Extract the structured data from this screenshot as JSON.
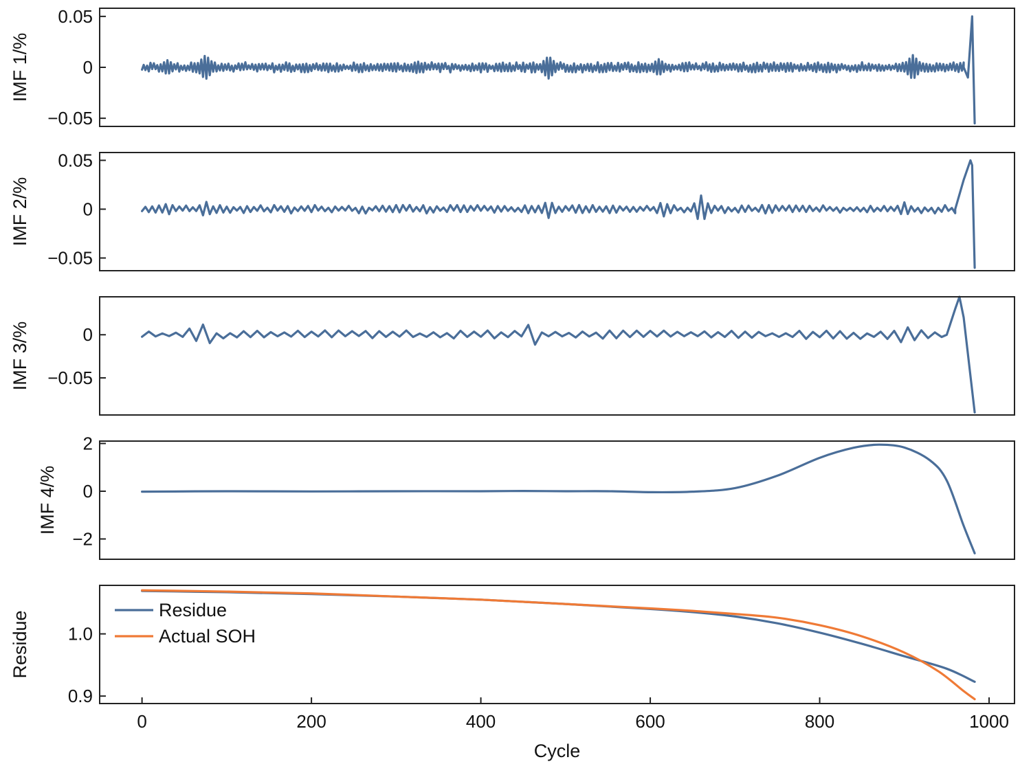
{
  "colors": {
    "blue": "#4a6e99",
    "orange": "#ef7a36",
    "axis": "#222222"
  },
  "chart_data": [
    {
      "type": "line",
      "ylabel": "IMF 1/%",
      "ylim": [
        -0.058,
        0.058
      ],
      "yticks": [
        0.05,
        0,
        -0.05
      ],
      "ytick_labels": [
        "0.05",
        "0",
        "−0.05"
      ],
      "xlim": [
        -50,
        1030
      ],
      "series": [
        {
          "color": "#4a6e99",
          "kind": "noise",
          "noise": {
            "step": 2,
            "base": 0.004,
            "seed": 11,
            "start": 0,
            "end": 970
          },
          "bursts": [
            [
              30,
              0.007
            ],
            [
              75,
              0.012
            ],
            [
              325,
              0.006
            ],
            [
              480,
              0.011
            ],
            [
              610,
              0.008
            ],
            [
              910,
              0.012
            ]
          ],
          "tail": [
            [
              970,
              0.0
            ],
            [
              975,
              -0.01
            ],
            [
              980,
              0.05
            ],
            [
              983,
              -0.055
            ]
          ]
        }
      ]
    },
    {
      "type": "line",
      "ylabel": "IMF 2/%",
      "ylim": [
        -0.063,
        0.058
      ],
      "yticks": [
        0.05,
        0,
        -0.05
      ],
      "ytick_labels": [
        "0.05",
        "0",
        "−0.05"
      ],
      "xlim": [
        -50,
        1030
      ],
      "series": [
        {
          "color": "#4a6e99",
          "kind": "noise",
          "noise": {
            "step": 4,
            "base": 0.0035,
            "seed": 23,
            "start": 0,
            "end": 960
          },
          "bursts": [
            [
              30,
              0.006
            ],
            [
              75,
              0.008
            ],
            [
              480,
              0.009
            ],
            [
              615,
              0.008
            ],
            [
              660,
              0.014
            ],
            [
              900,
              0.007
            ]
          ],
          "tail": [
            [
              960,
              0.0
            ],
            [
              970,
              0.03
            ],
            [
              978,
              0.05
            ],
            [
              980,
              0.045
            ],
            [
              983,
              -0.06
            ]
          ]
        }
      ]
    },
    {
      "type": "line",
      "ylabel": "IMF 3/%",
      "ylim": [
        -0.093,
        0.044
      ],
      "yticks": [
        0,
        -0.05
      ],
      "ytick_labels": [
        "0",
        "−0.05"
      ],
      "xlim": [
        -50,
        1030
      ],
      "series": [
        {
          "color": "#4a6e99",
          "kind": "noise",
          "noise": {
            "step": 8,
            "base": 0.004,
            "seed": 37,
            "start": 0,
            "end": 950
          },
          "bursts": [
            [
              60,
              0.01
            ],
            [
              75,
              0.015
            ],
            [
              460,
              0.016
            ],
            [
              900,
              0.012
            ],
            [
              915,
              0.008
            ]
          ],
          "tail": [
            [
              950,
              0.0
            ],
            [
              960,
              0.03
            ],
            [
              965,
              0.044
            ],
            [
              970,
              0.02
            ],
            [
              983,
              -0.09
            ]
          ]
        }
      ]
    },
    {
      "type": "line",
      "ylabel": "IMF 4/%",
      "ylim": [
        -2.85,
        2.1
      ],
      "yticks": [
        2,
        0,
        -2
      ],
      "ytick_labels": [
        "2",
        "0",
        "−2"
      ],
      "xlim": [
        -50,
        1030
      ],
      "series": [
        {
          "color": "#4a6e99",
          "kind": "points",
          "x": [
            0,
            100,
            200,
            300,
            400,
            450,
            500,
            550,
            600,
            650,
            700,
            750,
            800,
            840,
            870,
            900,
            930,
            950,
            970,
            983
          ],
          "y": [
            -0.02,
            0.0,
            -0.01,
            0.0,
            0.0,
            0.01,
            0.0,
            0.0,
            -0.04,
            -0.02,
            0.13,
            0.65,
            1.4,
            1.82,
            1.95,
            1.83,
            1.3,
            0.45,
            -1.45,
            -2.6
          ]
        }
      ]
    },
    {
      "type": "line",
      "ylabel": "Residue",
      "ylim": [
        0.888,
        1.078
      ],
      "yticks": [
        1.0,
        0.9
      ],
      "ytick_labels": [
        "1.0",
        "0.9"
      ],
      "xlim": [
        -50,
        1030
      ],
      "xticks": [
        0,
        200,
        400,
        600,
        800,
        1000
      ],
      "xtick_labels": [
        "0",
        "200",
        "400",
        "600",
        "800",
        "1000"
      ],
      "xlabel": "Cycle",
      "legend": {
        "position": "top-left"
      },
      "series": [
        {
          "name": "Residue",
          "color": "#4a6e99",
          "kind": "points",
          "x": [
            0,
            100,
            200,
            300,
            400,
            500,
            600,
            650,
            700,
            750,
            800,
            850,
            900,
            950,
            983
          ],
          "y": [
            1.069,
            1.067,
            1.064,
            1.06,
            1.055,
            1.048,
            1.04,
            1.035,
            1.028,
            1.017,
            1.002,
            0.984,
            0.964,
            0.944,
            0.923
          ]
        },
        {
          "name": "Actual SOH",
          "color": "#ef7a36",
          "kind": "points",
          "x": [
            0,
            100,
            200,
            300,
            400,
            500,
            600,
            650,
            700,
            750,
            800,
            850,
            900,
            940,
            970,
            983
          ],
          "y": [
            1.07,
            1.068,
            1.065,
            1.06,
            1.055,
            1.048,
            1.041,
            1.037,
            1.032,
            1.026,
            1.014,
            0.996,
            0.97,
            0.94,
            0.908,
            0.895
          ]
        }
      ]
    }
  ]
}
